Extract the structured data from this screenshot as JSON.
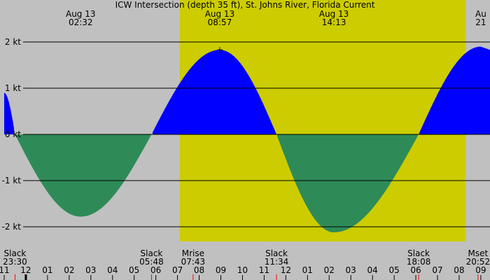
{
  "chart_data": {
    "type": "area",
    "title": "ICW Intersection (depth 35 ft), St. Johns River, Florida Current",
    "y_unit": "kt",
    "ylim": [
      -2.6,
      2.6
    ],
    "y_ticks": [
      {
        "value": 2,
        "label": "2 kt"
      },
      {
        "value": 1,
        "label": "1 kt"
      },
      {
        "value": 0,
        "label": "0 kt"
      },
      {
        "value": -1,
        "label": "-1 kt"
      },
      {
        "value": -2,
        "label": "-2 kt"
      }
    ],
    "x_range_hours": [
      -1.0,
      21.6
    ],
    "x_ticks": [
      {
        "hour": -1,
        "label": "11"
      },
      {
        "hour": 0,
        "label": "12"
      },
      {
        "hour": 1,
        "label": "01"
      },
      {
        "hour": 2,
        "label": "02"
      },
      {
        "hour": 3,
        "label": "03"
      },
      {
        "hour": 4,
        "label": "04"
      },
      {
        "hour": 5,
        "label": "05"
      },
      {
        "hour": 6,
        "label": "06"
      },
      {
        "hour": 7,
        "label": "07"
      },
      {
        "hour": 8,
        "label": "08"
      },
      {
        "hour": 9,
        "label": "09"
      },
      {
        "hour": 10,
        "label": "10"
      },
      {
        "hour": 11,
        "label": "11"
      },
      {
        "hour": 12,
        "label": "12"
      },
      {
        "hour": 13,
        "label": "01"
      },
      {
        "hour": 14,
        "label": "02"
      },
      {
        "hour": 15,
        "label": "03"
      },
      {
        "hour": 16,
        "label": "04"
      },
      {
        "hour": 17,
        "label": "05"
      },
      {
        "hour": 18,
        "label": "06"
      },
      {
        "hour": 19,
        "label": "07"
      },
      {
        "hour": 20,
        "label": "08"
      },
      {
        "hour": 21,
        "label": "09"
      }
    ],
    "daylight_hours": [
      7.1,
      20.3
    ],
    "flood_color": "#0000ff",
    "ebb_color": "#2e8b57",
    "daylight_color": "#cccc00",
    "night_color": "#c0c0c0",
    "top_events": [
      {
        "hour": 2.53,
        "date": "Aug 13",
        "time": "02:32"
      },
      {
        "hour": 8.95,
        "date": "Aug 13",
        "time": "08:57"
      },
      {
        "hour": 14.22,
        "date": "Aug 13",
        "time": "14:13"
      },
      {
        "hour": 21.0,
        "date": "Au",
        "time": "21"
      }
    ],
    "bottom_events": [
      {
        "hour": -0.5,
        "name": "Slack",
        "time": "23:30"
      },
      {
        "hour": 5.8,
        "name": "Slack",
        "time": "05:48"
      },
      {
        "hour": 7.72,
        "name": "Mrise",
        "time": "07:43"
      },
      {
        "hour": 11.57,
        "name": "Slack",
        "time": "11:34"
      },
      {
        "hour": 18.13,
        "name": "Slack",
        "time": "18:08"
      },
      {
        "hour": 20.87,
        "name": "Mset",
        "time": "20:52"
      }
    ],
    "current_points": [
      {
        "hour": -1.0,
        "kt": 0.9
      },
      {
        "hour": -0.5,
        "kt": 0.0
      },
      {
        "hour": 2.53,
        "kt": -1.78
      },
      {
        "hour": 5.8,
        "kt": 0.0
      },
      {
        "hour": 8.95,
        "kt": 1.83
      },
      {
        "hour": 11.57,
        "kt": 0.0
      },
      {
        "hour": 14.22,
        "kt": -2.12
      },
      {
        "hour": 18.13,
        "kt": 0.0
      },
      {
        "hour": 21.0,
        "kt": 1.9
      },
      {
        "hour": 21.6,
        "kt": 1.8
      }
    ],
    "peak_marker_hour": 8.95
  }
}
